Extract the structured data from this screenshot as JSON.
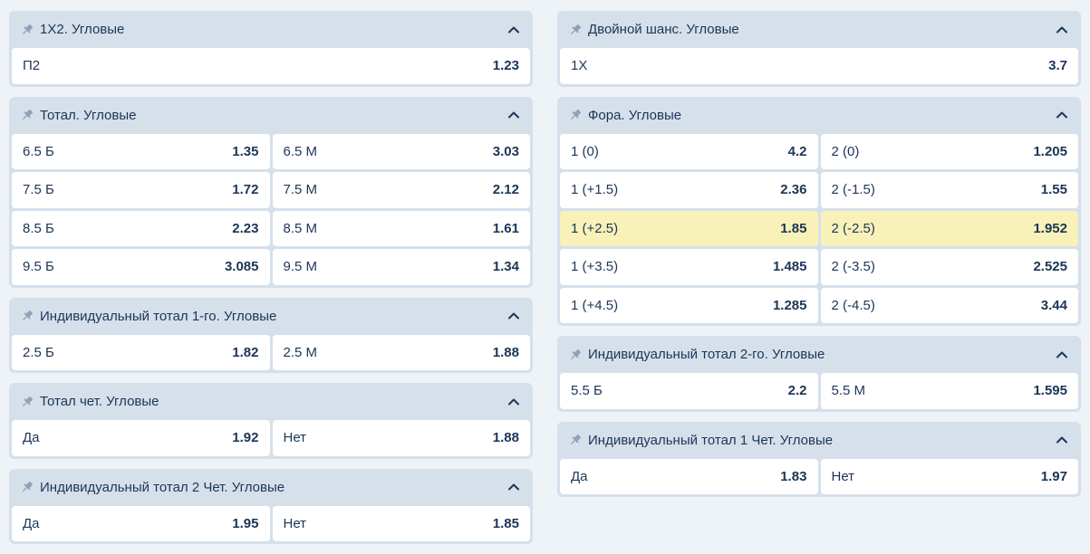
{
  "left": [
    {
      "title": "1X2. Угловые",
      "rows": [
        [
          {
            "label": "П2",
            "odd": "1.23"
          }
        ]
      ]
    },
    {
      "title": "Тотал. Угловые",
      "rows": [
        [
          {
            "label": "6.5 Б",
            "odd": "1.35"
          },
          {
            "label": "6.5 М",
            "odd": "3.03"
          }
        ],
        [
          {
            "label": "7.5 Б",
            "odd": "1.72"
          },
          {
            "label": "7.5 М",
            "odd": "2.12"
          }
        ],
        [
          {
            "label": "8.5 Б",
            "odd": "2.23"
          },
          {
            "label": "8.5 М",
            "odd": "1.61"
          }
        ],
        [
          {
            "label": "9.5 Б",
            "odd": "3.085"
          },
          {
            "label": "9.5 М",
            "odd": "1.34"
          }
        ]
      ]
    },
    {
      "title": "Индивидуальный тотал 1-го. Угловые",
      "rows": [
        [
          {
            "label": "2.5 Б",
            "odd": "1.82"
          },
          {
            "label": "2.5 М",
            "odd": "1.88"
          }
        ]
      ]
    },
    {
      "title": "Тотал чет. Угловые",
      "rows": [
        [
          {
            "label": "Да",
            "odd": "1.92"
          },
          {
            "label": "Нет",
            "odd": "1.88"
          }
        ]
      ]
    },
    {
      "title": "Индивидуальный тотал 2 Чет. Угловые",
      "rows": [
        [
          {
            "label": "Да",
            "odd": "1.95"
          },
          {
            "label": "Нет",
            "odd": "1.85"
          }
        ]
      ]
    }
  ],
  "right": [
    {
      "title": "Двойной шанс. Угловые",
      "rows": [
        [
          {
            "label": "1X",
            "odd": "3.7"
          }
        ]
      ]
    },
    {
      "title": "Фора. Угловые",
      "rows": [
        [
          {
            "label": "1 (0)",
            "odd": "4.2"
          },
          {
            "label": "2 (0)",
            "odd": "1.205"
          }
        ],
        [
          {
            "label": "1 (+1.5)",
            "odd": "2.36"
          },
          {
            "label": "2 (-1.5)",
            "odd": "1.55"
          }
        ],
        [
          {
            "label": "1 (+2.5)",
            "odd": "1.85",
            "highlight": true
          },
          {
            "label": "2 (-2.5)",
            "odd": "1.952",
            "highlight": true
          }
        ],
        [
          {
            "label": "1 (+3.5)",
            "odd": "1.485"
          },
          {
            "label": "2 (-3.5)",
            "odd": "2.525"
          }
        ],
        [
          {
            "label": "1 (+4.5)",
            "odd": "1.285"
          },
          {
            "label": "2 (-4.5)",
            "odd": "3.44"
          }
        ]
      ]
    },
    {
      "title": "Индивидуальный тотал 2-го. Угловые",
      "rows": [
        [
          {
            "label": "5.5 Б",
            "odd": "2.2"
          },
          {
            "label": "5.5 М",
            "odd": "1.595"
          }
        ]
      ]
    },
    {
      "title": "Индивидуальный тотал 1 Чет. Угловые",
      "rows": [
        [
          {
            "label": "Да",
            "odd": "1.83"
          },
          {
            "label": "Нет",
            "odd": "1.97"
          }
        ]
      ]
    }
  ],
  "icons": {
    "pin": "pin-icon",
    "collapse": "chevron-up-icon"
  },
  "colors": {
    "highlight": "#f8f2b8",
    "panel": "#d6e0eb",
    "text": "#1c3557"
  }
}
